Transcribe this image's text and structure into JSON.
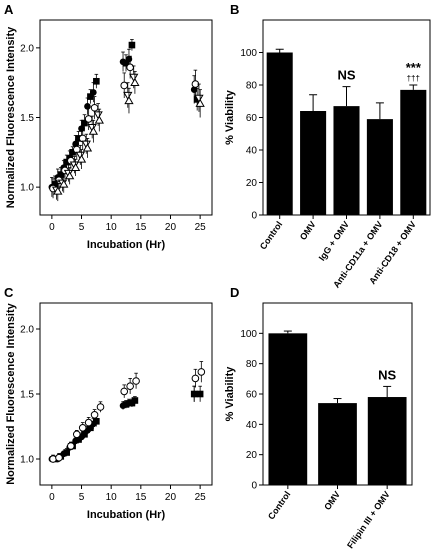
{
  "chart_data": [
    {
      "panel": "A",
      "type": "scatter",
      "xlabel": "Incubation (Hr)",
      "ylabel": "Normalized Fluorescence Intensity",
      "xlim": [
        -2,
        27
      ],
      "ylim": [
        0.8,
        2.2
      ],
      "xticks": [
        "0",
        "5",
        "10",
        "15",
        "20",
        "25"
      ],
      "xtick_values": [
        0,
        5,
        10,
        15,
        20,
        25
      ],
      "yticks": [
        "1.0",
        "1.5",
        "2.0"
      ],
      "ytick_values": [
        1.0,
        1.5,
        2.0
      ],
      "series": [
        {
          "marker": "filled-square",
          "x": [
            0.5,
            1.5,
            2.5,
            3.5,
            4.5,
            5.5,
            6.5,
            7.5,
            12.5,
            13.5,
            24.5
          ],
          "y": [
            1.02,
            1.09,
            1.18,
            1.25,
            1.35,
            1.46,
            1.65,
            1.76,
            1.89,
            2.02,
            1.63
          ],
          "err": [
            0.06,
            0.05,
            0.05,
            0.04,
            0.05,
            0.06,
            0.05,
            0.05,
            0.06,
            0.04,
            0.08
          ]
        },
        {
          "marker": "filled-circle",
          "x": [
            0,
            1,
            2,
            3,
            4,
            5,
            6,
            7,
            12,
            13,
            24
          ],
          "y": [
            1.0,
            1.07,
            1.14,
            1.21,
            1.31,
            1.42,
            1.58,
            1.68,
            1.9,
            1.92,
            1.7
          ],
          "err": [
            0.07,
            0.06,
            0.05,
            0.05,
            0.06,
            0.06,
            0.06,
            0.07,
            0.07,
            0.07,
            0.1
          ]
        },
        {
          "marker": "open-circle",
          "x": [
            0.2,
            1.2,
            2.2,
            3.2,
            4.2,
            5.2,
            6.2,
            7.2,
            12.2,
            13.2,
            24.2
          ],
          "y": [
            0.99,
            1.05,
            1.12,
            1.19,
            1.27,
            1.35,
            1.49,
            1.57,
            1.73,
            1.86,
            1.74
          ],
          "err": [
            0.07,
            0.06,
            0.06,
            0.06,
            0.07,
            0.08,
            0.08,
            0.08,
            0.09,
            0.08,
            0.1
          ]
        },
        {
          "marker": "open-triangle-down",
          "x": [
            0.8,
            1.8,
            2.8,
            3.8,
            4.8,
            5.8,
            6.8,
            7.8,
            12.8,
            13.8,
            24.8
          ],
          "y": [
            0.98,
            1.03,
            1.1,
            1.16,
            1.23,
            1.31,
            1.43,
            1.52,
            1.66,
            1.79,
            1.64
          ],
          "err": [
            0.07,
            0.06,
            0.06,
            0.06,
            0.07,
            0.07,
            0.08,
            0.08,
            0.09,
            0.08,
            0.1
          ]
        },
        {
          "marker": "open-triangle-up",
          "x": [
            1.0,
            2.0,
            3.0,
            4.0,
            5.0,
            6.0,
            7.0,
            8.0,
            13.0,
            14.0,
            25.0
          ],
          "y": [
            0.97,
            1.02,
            1.08,
            1.14,
            1.2,
            1.28,
            1.4,
            1.48,
            1.62,
            1.75,
            1.6
          ],
          "err": [
            0.07,
            0.06,
            0.06,
            0.06,
            0.07,
            0.07,
            0.08,
            0.08,
            0.09,
            0.08,
            0.1
          ]
        }
      ]
    },
    {
      "panel": "B",
      "type": "bar",
      "ylabel": "% Viability",
      "ylim": [
        0,
        120
      ],
      "yticks": [
        "0",
        "20",
        "40",
        "60",
        "80",
        "100"
      ],
      "ytick_values": [
        0,
        20,
        40,
        60,
        80,
        100
      ],
      "categories": [
        "Control",
        "OMV",
        "IgG + OMV",
        "Anti-CD11a + OMV",
        "Anti-CD18 + OMV"
      ],
      "values": [
        100,
        64,
        67,
        59,
        77
      ],
      "errors": [
        2,
        10,
        12,
        10,
        3
      ],
      "annotations": [
        "",
        "",
        "NS",
        "",
        "***"
      ],
      "annotations2": [
        "",
        "",
        "",
        "",
        "†††"
      ]
    },
    {
      "panel": "C",
      "type": "scatter",
      "xlabel": "Incubation (Hr)",
      "ylabel": "Normalized Fluorescence Intensity",
      "xlim": [
        -2,
        27
      ],
      "ylim": [
        0.8,
        2.2
      ],
      "xticks": [
        "0",
        "5",
        "10",
        "15",
        "20",
        "25"
      ],
      "xtick_values": [
        0,
        5,
        10,
        15,
        20,
        25
      ],
      "yticks": [
        "1.0",
        "1.5",
        "2.0"
      ],
      "ytick_values": [
        1.0,
        1.5,
        2.0
      ],
      "series": [
        {
          "marker": "filled-square",
          "x": [
            0.5,
            1.5,
            2.5,
            3.5,
            4.5,
            5.5,
            6.5,
            7.5,
            12.5,
            13.5,
            14,
            24,
            25
          ],
          "y": [
            1.0,
            1.02,
            1.05,
            1.1,
            1.15,
            1.19,
            1.24,
            1.29,
            1.42,
            1.43,
            1.45,
            1.5,
            1.5
          ],
          "err": [
            0.02,
            0.02,
            0.03,
            0.03,
            0.03,
            0.03,
            0.03,
            0.04,
            0.03,
            0.03,
            0.03,
            0.06,
            0.06
          ]
        },
        {
          "marker": "filled-circle",
          "x": [
            0,
            1,
            2,
            3,
            4,
            5,
            6,
            7,
            12,
            13,
            24
          ],
          "y": [
            1.0,
            1.0,
            1.04,
            1.09,
            1.14,
            1.17,
            1.22,
            1.27,
            1.41,
            1.43,
            1.5
          ],
          "err": [
            0.02,
            0.02,
            0.02,
            0.03,
            0.03,
            0.03,
            0.03,
            0.04,
            0.03,
            0.03,
            0.06
          ]
        },
        {
          "marker": "open-circle",
          "x": [
            0.2,
            1.2,
            3.2,
            4.2,
            5.2,
            6.2,
            7.2,
            8.2,
            12.2,
            13.2,
            14.2,
            24.2,
            25.2
          ],
          "y": [
            1.0,
            1.01,
            1.1,
            1.19,
            1.24,
            1.28,
            1.34,
            1.4,
            1.52,
            1.56,
            1.6,
            1.62,
            1.67
          ],
          "err": [
            0.03,
            0.03,
            0.03,
            0.03,
            0.04,
            0.04,
            0.04,
            0.04,
            0.05,
            0.06,
            0.06,
            0.07,
            0.08
          ]
        }
      ]
    },
    {
      "panel": "D",
      "type": "bar",
      "ylabel": "% Viability",
      "ylim": [
        0,
        120
      ],
      "yticks": [
        "0",
        "20",
        "40",
        "60",
        "80",
        "100"
      ],
      "ytick_values": [
        0,
        20,
        40,
        60,
        80,
        100
      ],
      "categories": [
        "Control",
        "OMV",
        "Filipin III + OMV"
      ],
      "values": [
        100,
        54,
        58
      ],
      "errors": [
        1.5,
        3,
        7
      ],
      "annotations": [
        "",
        "",
        "NS"
      ],
      "annotations2": [
        "",
        "",
        ""
      ]
    }
  ]
}
